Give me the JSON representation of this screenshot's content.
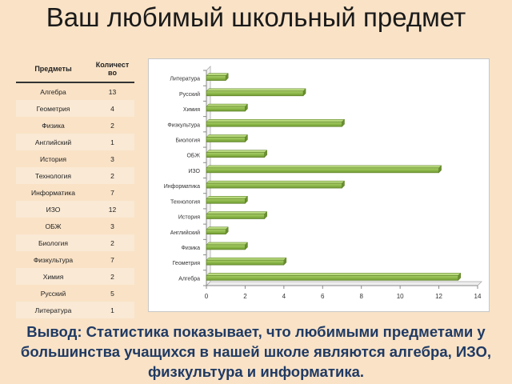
{
  "slide": {
    "title": "Ваш любимый школьный предмет",
    "conclusion": "Вывод: Статистика показывает, что любимыми предметами у большинства учащихся в нашей школе являются алгебра, ИЗО, физкультура и информатика."
  },
  "table": {
    "headers": [
      "Предметы",
      "Количество"
    ],
    "rows": [
      [
        "Алгебра",
        "13"
      ],
      [
        "Геометрия",
        "4"
      ],
      [
        "Физика",
        "2"
      ],
      [
        "Английский",
        "1"
      ],
      [
        "История",
        "3"
      ],
      [
        "Технология",
        "2"
      ],
      [
        "Информатика",
        "7"
      ],
      [
        "ИЗО",
        "12"
      ],
      [
        "ОБЖ",
        "3"
      ],
      [
        "Биология",
        "2"
      ],
      [
        "Физкультура",
        "7"
      ],
      [
        "Химия",
        "2"
      ],
      [
        "Русский",
        "5"
      ],
      [
        "Литература",
        "1"
      ]
    ]
  },
  "chart_data": {
    "type": "bar",
    "orientation": "horizontal",
    "categories": [
      "Алгебра",
      "Геометрия",
      "Физика",
      "Английский",
      "История",
      "Технология",
      "Информатика",
      "ИЗО",
      "ОБЖ",
      "Биология",
      "Физкультура",
      "Химия",
      "Русский",
      "Литература"
    ],
    "values": [
      13,
      4,
      2,
      1,
      3,
      2,
      7,
      12,
      3,
      2,
      7,
      2,
      5,
      1
    ],
    "xlim": [
      0,
      14
    ],
    "xticks": [
      0,
      2,
      4,
      6,
      8,
      10,
      12,
      14
    ],
    "grid": false,
    "legend": "none",
    "bar_color": "#8db84a",
    "bar_edge_color": "#5a7d24"
  }
}
